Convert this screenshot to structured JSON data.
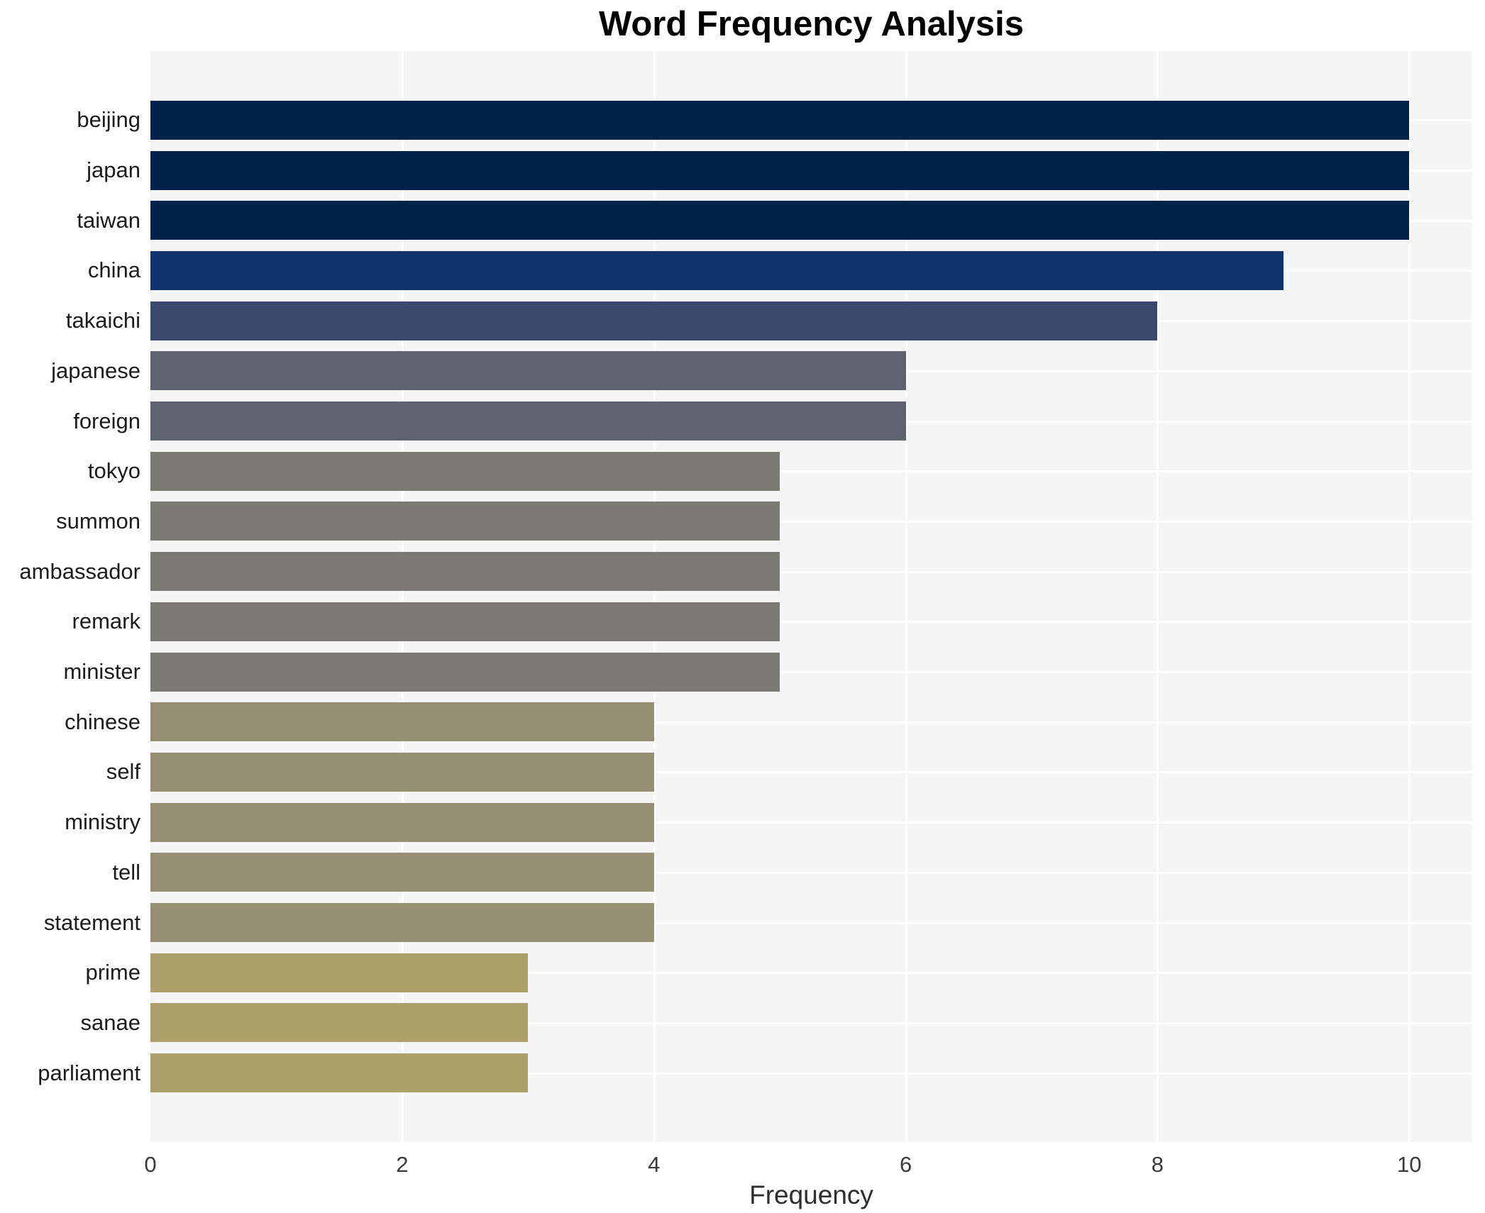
{
  "chart_data": {
    "type": "bar",
    "orientation": "horizontal",
    "title": "Word Frequency Analysis",
    "xlabel": "Frequency",
    "ylabel": "",
    "xlim": [
      0,
      10.5
    ],
    "xticks": [
      0,
      2,
      4,
      6,
      8,
      10
    ],
    "grid": true,
    "legend_position": "none",
    "plot_background": "#f5f5f6",
    "grid_color": "#ffffff",
    "categories": [
      "beijing",
      "japan",
      "taiwan",
      "china",
      "takaichi",
      "japanese",
      "foreign",
      "tokyo",
      "summon",
      "ambassador",
      "remark",
      "minister",
      "chinese",
      "self",
      "ministry",
      "tell",
      "statement",
      "prime",
      "sanae",
      "parliament"
    ],
    "values": [
      10,
      10,
      10,
      9,
      8,
      6,
      6,
      5,
      5,
      5,
      5,
      5,
      4,
      4,
      4,
      4,
      4,
      3,
      3,
      3
    ],
    "bar_colors": [
      "#02224c",
      "#02224c",
      "#02224c",
      "#10336e",
      "#3a486e",
      "#5f636f",
      "#5f636f",
      "#7b7a73",
      "#7b7a73",
      "#7b7a73",
      "#7b7a73",
      "#7b7a73",
      "#968f73",
      "#968f73",
      "#968f73",
      "#968f73",
      "#968f73",
      "#aea06b",
      "#aea06b",
      "#aea06b"
    ]
  }
}
